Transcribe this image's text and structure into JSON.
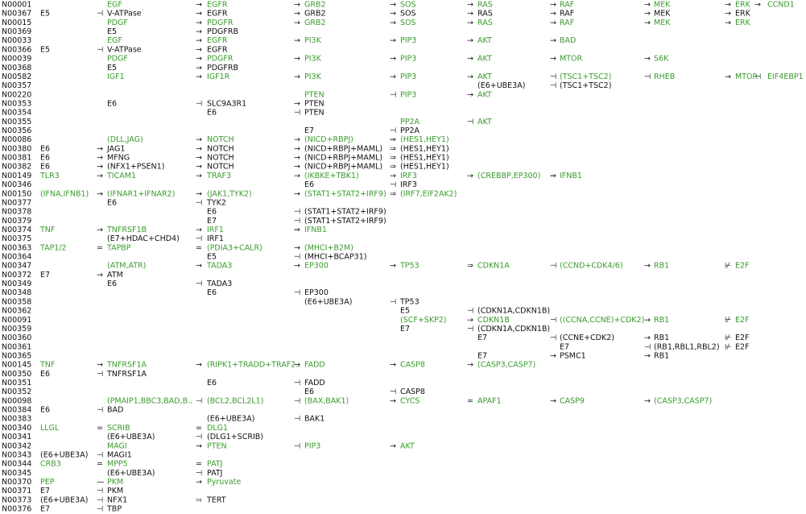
{
  "rows": [
    {
      "id": "N00001",
      "highlight": true,
      "cells": [
        null,
        null,
        "EGF",
        "→",
        "EGFR",
        "→",
        "GRB2",
        "→",
        "SOS",
        "→",
        "RAS",
        "→",
        "RAF",
        "→",
        "MEK",
        "→",
        "ERK",
        "→",
        "CCND1"
      ]
    },
    {
      "id": "N00367",
      "highlight": false,
      "cells": [
        "E5",
        "⊣",
        "V-ATPase",
        "→",
        "EGFR",
        "→",
        "GRB2",
        "→",
        "SOS",
        "→",
        "RAS",
        "→",
        "RAF",
        "→",
        "MEK",
        "→",
        "ERK"
      ]
    },
    {
      "id": "N00015",
      "highlight": true,
      "cells": [
        null,
        null,
        "PDGF",
        "→",
        "PDGFR",
        "→",
        "GRB2",
        "→",
        "SOS",
        "→",
        "RAS",
        "→",
        "RAF",
        "→",
        "MEK",
        "→",
        "ERK"
      ]
    },
    {
      "id": "N00369",
      "highlight": false,
      "cells": [
        null,
        null,
        "E5",
        "→",
        "PDGFRB"
      ]
    },
    {
      "id": "N00033",
      "highlight": true,
      "cells": [
        null,
        null,
        "EGF",
        "→",
        "EGFR",
        "→",
        "PI3K",
        "→",
        "PIP3",
        "→",
        "AKT",
        "→",
        "BAD"
      ]
    },
    {
      "id": "N00366",
      "highlight": false,
      "cells": [
        "E5",
        "⊣",
        "V-ATPase",
        "→",
        "EGFR"
      ]
    },
    {
      "id": "N00039",
      "highlight": true,
      "cells": [
        null,
        null,
        "PDGF",
        "→",
        "PDGFR",
        "→",
        "PI3K",
        "→",
        "PIP3",
        "→",
        "AKT",
        "→",
        "MTOR",
        "→",
        "S6K"
      ]
    },
    {
      "id": "N00368",
      "highlight": false,
      "cells": [
        null,
        null,
        "E5",
        "→",
        "PDGFRB"
      ]
    },
    {
      "id": "N00582",
      "highlight": true,
      "cells": [
        null,
        null,
        "IGF1",
        "→",
        "IGF1R",
        "→",
        "PI3K",
        "→",
        "PIP3",
        "→",
        "AKT",
        "⊣",
        "(TSC1+TSC2)",
        "⊣",
        "RHEB",
        "→",
        "MTOR",
        "⊣",
        "EIF4EBP1"
      ]
    },
    {
      "id": "N00357",
      "highlight": false,
      "cells": [
        null,
        null,
        null,
        null,
        null,
        null,
        null,
        null,
        null,
        null,
        "(E6+UBE3A)",
        "⊣",
        "(TSC1+TSC2)"
      ]
    },
    {
      "id": "N00220",
      "highlight": true,
      "cells": [
        null,
        null,
        null,
        null,
        null,
        null,
        "PTEN",
        "⊣",
        "PIP3",
        "→",
        "AKT"
      ]
    },
    {
      "id": "N00353",
      "highlight": false,
      "cells": [
        null,
        null,
        "E6",
        "⊣",
        "SLC9A3R1",
        "→",
        "PTEN"
      ]
    },
    {
      "id": "N00354",
      "highlight": false,
      "cells": [
        null,
        null,
        null,
        null,
        "E6",
        "⊣",
        "PTEN"
      ]
    },
    {
      "id": "N00355",
      "highlight": true,
      "cells": [
        null,
        null,
        null,
        null,
        null,
        null,
        null,
        null,
        "PP2A",
        "⊣",
        "AKT"
      ]
    },
    {
      "id": "N00356",
      "highlight": false,
      "cells": [
        null,
        null,
        null,
        null,
        null,
        null,
        "E7",
        "⊣",
        "PP2A"
      ]
    },
    {
      "id": "N00086",
      "highlight": true,
      "cells": [
        null,
        null,
        "(DLL,JAG)",
        "→",
        "NOTCH",
        "→",
        "(NICD+RBPJ)",
        "⇒",
        "(HES1,HEY1)"
      ]
    },
    {
      "id": "N00380",
      "highlight": false,
      "cells": [
        "E6",
        "→",
        "JAG1",
        "→",
        "NOTCH",
        "→",
        "(NICD+RBPJ+MAML)",
        "⇒",
        "(HES1,HEY1)"
      ]
    },
    {
      "id": "N00381",
      "highlight": false,
      "cells": [
        "E6",
        "→",
        "MFNG",
        "→",
        "NOTCH",
        "→",
        "(NICD+RBPJ+MAML)",
        "⇒",
        "(HES1,HEY1)"
      ]
    },
    {
      "id": "N00382",
      "highlight": false,
      "cells": [
        "E6",
        "→",
        "(NFX1+PSEN1)",
        "→",
        "NOTCH",
        "→",
        "(NICD+RBPJ+MAML)",
        "⇒",
        "(HES1,HEY1)"
      ]
    },
    {
      "id": "N00149",
      "highlight": true,
      "cells": [
        "TLR3",
        "→",
        "TICAM1",
        "→",
        "TRAF3",
        "→",
        "(IKBKE+TBK1)",
        "→",
        "IRF3",
        "→",
        "(CREBBP,EP300)",
        "⇒",
        "IFNB1"
      ]
    },
    {
      "id": "N00346",
      "highlight": false,
      "cells": [
        null,
        null,
        null,
        null,
        null,
        null,
        "E6",
        "⊣",
        "IRF3"
      ]
    },
    {
      "id": "N00150",
      "highlight": true,
      "cells": [
        "(IFNA,IFNB1)",
        "→",
        "(IFNAR1+IFNAR2)",
        "→",
        "(JAK1,TYK2)",
        "→",
        "(STAT1+STAT2+IRF9)",
        "⇒",
        "(IRF7,EIF2AK2)"
      ]
    },
    {
      "id": "N00377",
      "highlight": false,
      "cells": [
        null,
        null,
        "E6",
        "⊣",
        "TYK2"
      ]
    },
    {
      "id": "N00378",
      "highlight": false,
      "cells": [
        null,
        null,
        null,
        null,
        "E6",
        "⊣",
        "(STAT1+STAT2+IRF9)"
      ]
    },
    {
      "id": "N00379",
      "highlight": false,
      "cells": [
        null,
        null,
        null,
        null,
        "E7",
        "⊣",
        "(STAT1+STAT2+IRF9)"
      ]
    },
    {
      "id": "N00374",
      "highlight": true,
      "cells": [
        "TNF",
        "→",
        "TNFRSF1B",
        "→",
        "IRF1",
        "⇒",
        "IFNB1"
      ]
    },
    {
      "id": "N00375",
      "highlight": false,
      "cells": [
        null,
        null,
        "(E7+HDAC+CHD4)",
        "⊣",
        "IRF1"
      ]
    },
    {
      "id": "N00363",
      "highlight": true,
      "cells": [
        "TAP1/2",
        "=",
        "TAPBP",
        "=",
        "(PDIA3+CALR)",
        "→",
        "(MHCI+B2M)"
      ]
    },
    {
      "id": "N00364",
      "highlight": false,
      "cells": [
        null,
        null,
        null,
        null,
        "E5",
        "⊣",
        "(MHCI+BCAP31)"
      ]
    },
    {
      "id": "N00347",
      "highlight": true,
      "cells": [
        null,
        null,
        "(ATM,ATR)",
        "→",
        "TADA3",
        "→",
        "EP300",
        "→",
        "TP53",
        "⇒",
        "CDKN1A",
        "⊣",
        "(CCND+CDK4/6)",
        "→",
        "RB1",
        "⊬",
        "E2F"
      ]
    },
    {
      "id": "N00372",
      "highlight": false,
      "cells": [
        "E7",
        "→",
        "ATM"
      ]
    },
    {
      "id": "N00349",
      "highlight": false,
      "cells": [
        null,
        null,
        "E6",
        "⊣",
        "TADA3"
      ]
    },
    {
      "id": "N00348",
      "highlight": false,
      "cells": [
        null,
        null,
        null,
        null,
        "E6",
        "⊣",
        "EP300"
      ]
    },
    {
      "id": "N00358",
      "highlight": false,
      "cells": [
        null,
        null,
        null,
        null,
        null,
        null,
        "(E6+UBE3A)",
        "⊣",
        "TP53"
      ]
    },
    {
      "id": "N00362",
      "highlight": false,
      "cells": [
        null,
        null,
        null,
        null,
        null,
        null,
        null,
        null,
        "E5",
        "⊣",
        "(CDKN1A,CDKN1B)"
      ]
    },
    {
      "id": "N00091",
      "highlight": true,
      "cells": [
        null,
        null,
        null,
        null,
        null,
        null,
        null,
        null,
        "(SCF+SKP2)",
        "→",
        "CDKN1B",
        "⊣",
        "((CCNA,CCNE)+CDK2)",
        "→",
        "RB1",
        "⊬",
        "E2F"
      ]
    },
    {
      "id": "N00359",
      "highlight": false,
      "cells": [
        null,
        null,
        null,
        null,
        null,
        null,
        null,
        null,
        "E7",
        "⊣",
        "(CDKN1A,CDKN1B)"
      ]
    },
    {
      "id": "N00360",
      "highlight": false,
      "cells": [
        null,
        null,
        null,
        null,
        null,
        null,
        null,
        null,
        null,
        null,
        "E7",
        "⊣",
        "(CCNE+CDK2)",
        "→",
        "RB1",
        "⊬",
        "E2F"
      ]
    },
    {
      "id": "N00361",
      "highlight": false,
      "cells": [
        null,
        null,
        null,
        null,
        null,
        null,
        null,
        null,
        null,
        null,
        null,
        null,
        "E7",
        "⊣",
        "(RB1,RBL1,RBL2)",
        "⊬",
        "E2F"
      ]
    },
    {
      "id": "N00365",
      "highlight": false,
      "cells": [
        null,
        null,
        null,
        null,
        null,
        null,
        null,
        null,
        null,
        null,
        "E7",
        "→",
        "PSMC1",
        "→",
        "RB1"
      ]
    },
    {
      "id": "N00145",
      "highlight": true,
      "cells": [
        "TNF",
        "→",
        "TNFRSF1A",
        "→",
        "(RIPK1+TRADD+TRAF2..",
        "→",
        "FADD",
        "→",
        "CASP8",
        "→",
        "(CASP3,CASP7)"
      ]
    },
    {
      "id": "N00350",
      "highlight": false,
      "cells": [
        "E6",
        "⊣",
        "TNFRSF1A"
      ]
    },
    {
      "id": "N00351",
      "highlight": false,
      "cells": [
        null,
        null,
        null,
        null,
        "E6",
        "⊣",
        "FADD"
      ]
    },
    {
      "id": "N00352",
      "highlight": false,
      "cells": [
        null,
        null,
        null,
        null,
        null,
        null,
        "E6",
        "⊣",
        "CASP8"
      ]
    },
    {
      "id": "N00098",
      "highlight": true,
      "cells": [
        null,
        null,
        "(PMAIP1,BBC3,BAD,B..",
        "⊣",
        "(BCL2,BCL2L1)",
        "⊣",
        "(BAX,BAK1)",
        "→",
        "CYCS",
        "=",
        "APAF1",
        "→",
        "CASP9",
        "→",
        "(CASP3,CASP7)"
      ]
    },
    {
      "id": "N00384",
      "highlight": false,
      "cells": [
        "E6",
        "⊣",
        "BAD"
      ]
    },
    {
      "id": "N00383",
      "highlight": false,
      "cells": [
        null,
        null,
        null,
        null,
        "(E6+UBE3A)",
        "⊣",
        "BAK1"
      ]
    },
    {
      "id": "N00340",
      "highlight": true,
      "cells": [
        "LLGL",
        "=",
        "SCRIB",
        "=",
        "DLG1"
      ]
    },
    {
      "id": "N00341",
      "highlight": false,
      "cells": [
        null,
        null,
        "(E6+UBE3A)",
        "⊣",
        "(DLG1+SCRIB)"
      ]
    },
    {
      "id": "N00342",
      "highlight": true,
      "cells": [
        null,
        null,
        "MAGI",
        "→",
        "PTEN",
        "⊣",
        "PIP3",
        "→",
        "AKT"
      ]
    },
    {
      "id": "N00343",
      "highlight": false,
      "cells": [
        "(E6+UBE3A)",
        "⊣",
        "MAGI1"
      ]
    },
    {
      "id": "N00344",
      "highlight": true,
      "cells": [
        "CRB3",
        "=",
        "MPP5",
        "=",
        "PATJ"
      ]
    },
    {
      "id": "N00345",
      "highlight": false,
      "cells": [
        null,
        null,
        "(E6+UBE3A)",
        "⊣",
        "PATJ"
      ]
    },
    {
      "id": "N00370",
      "highlight": true,
      "cells": [
        "PEP",
        "—",
        "PKM",
        "→",
        "Pyruvate"
      ]
    },
    {
      "id": "N00371",
      "highlight": false,
      "cells": [
        "E7",
        "⊣",
        "PKM"
      ]
    },
    {
      "id": "N00373",
      "highlight": false,
      "cells": [
        "(E6+UBE3A)",
        "⊣",
        "NFX1",
        "⫤",
        "TERT"
      ]
    },
    {
      "id": "N00376",
      "highlight": false,
      "cells": [
        "E7",
        "⊣",
        "TBP"
      ]
    }
  ]
}
